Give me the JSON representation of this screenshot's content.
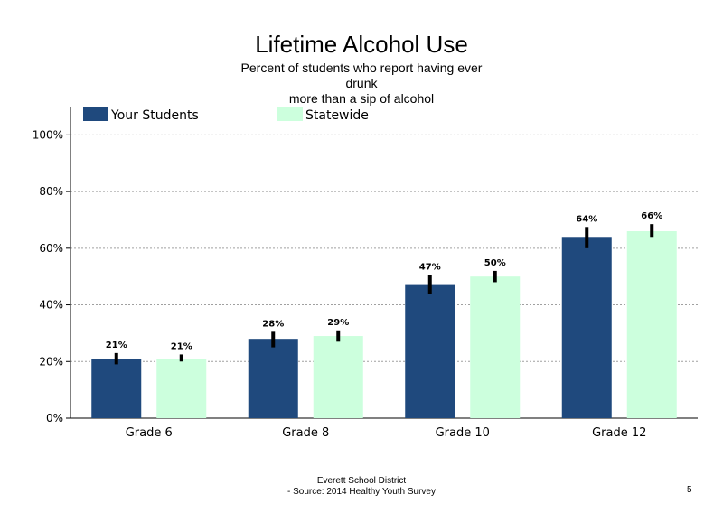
{
  "chart_data": {
    "type": "bar",
    "title": "Lifetime Alcohol Use",
    "subtitle_lines": [
      "Percent of students who report having ever",
      "drunk",
      "more than a sip of alcohol"
    ],
    "categories": [
      "Grade 6",
      "Grade 8",
      "Grade 10",
      "Grade 12"
    ],
    "series": [
      {
        "name": "Your Students",
        "color": "#1F497D",
        "values": [
          21,
          28,
          47,
          64
        ],
        "error_low": [
          19,
          25,
          44,
          60
        ],
        "error_high": [
          23,
          30.5,
          50.5,
          67.5
        ],
        "labels": [
          "21%",
          "28%",
          "47%",
          "64%"
        ]
      },
      {
        "name": "Statewide",
        "color": "#CCFFDD",
        "values": [
          21,
          29,
          50,
          66
        ],
        "error_low": [
          20,
          27,
          48,
          64
        ],
        "error_high": [
          22.5,
          31,
          52,
          68.5
        ],
        "labels": [
          "21%",
          "29%",
          "50%",
          "66%"
        ]
      }
    ],
    "ylim": [
      0,
      110
    ],
    "yticks": [
      0,
      20,
      40,
      60,
      80,
      100
    ],
    "ytick_labels": [
      "0%",
      "20%",
      "40%",
      "60%",
      "80%",
      "100%"
    ],
    "grid": "horizontal dotted",
    "legend": "top"
  },
  "footer": {
    "line1": "Everett School District",
    "line2": "- Source: 2014 Healthy  Youth Survey"
  },
  "page_number": "5"
}
